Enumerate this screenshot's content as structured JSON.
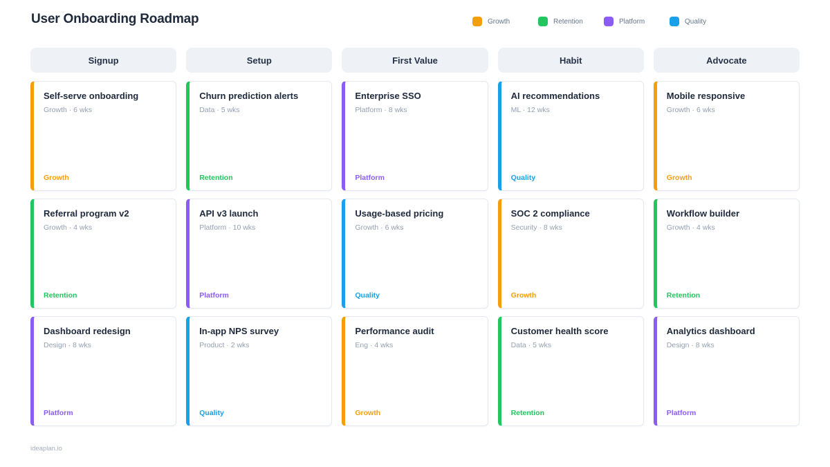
{
  "header": {
    "title": "User Onboarding Roadmap"
  },
  "legend": [
    {
      "label": "Growth"
    },
    {
      "label": "Retention"
    },
    {
      "label": "Platform"
    },
    {
      "label": "Quality"
    }
  ],
  "tag_colors": {
    "Growth": "#F59E0B",
    "Retention": "#22C55E",
    "Platform": "#8B5CF6",
    "Quality": "#18A0E8"
  },
  "columns": [
    {
      "header": "Signup",
      "cards": [
        {
          "title": "Self-serve onboarding",
          "meta": "Growth · 6 wks",
          "tag": "Growth"
        },
        {
          "title": "Referral program v2",
          "meta": "Growth · 4 wks",
          "tag": "Retention"
        },
        {
          "title": "Dashboard redesign",
          "meta": "Design · 8 wks",
          "tag": "Platform"
        }
      ]
    },
    {
      "header": "Setup",
      "cards": [
        {
          "title": "Churn prediction alerts",
          "meta": "Data · 5 wks",
          "tag": "Retention"
        },
        {
          "title": "API v3 launch",
          "meta": "Platform · 10 wks",
          "tag": "Platform"
        },
        {
          "title": "In-app NPS survey",
          "meta": "Product · 2 wks",
          "tag": "Quality"
        }
      ]
    },
    {
      "header": "First Value",
      "cards": [
        {
          "title": "Enterprise SSO",
          "meta": "Platform · 8 wks",
          "tag": "Platform"
        },
        {
          "title": "Usage-based pricing",
          "meta": "Growth · 6 wks",
          "tag": "Quality"
        },
        {
          "title": "Performance audit",
          "meta": "Eng · 4 wks",
          "tag": "Growth"
        }
      ]
    },
    {
      "header": "Habit",
      "cards": [
        {
          "title": "AI recommendations",
          "meta": "ML · 12 wks",
          "tag": "Quality"
        },
        {
          "title": "SOC 2 compliance",
          "meta": "Security · 8 wks",
          "tag": "Growth"
        },
        {
          "title": "Customer health score",
          "meta": "Data · 5 wks",
          "tag": "Retention"
        }
      ]
    },
    {
      "header": "Advocate",
      "cards": [
        {
          "title": "Mobile responsive",
          "meta": "Growth · 6 wks",
          "tag": "Growth"
        },
        {
          "title": "Workflow builder",
          "meta": "Growth · 4 wks",
          "tag": "Retention"
        },
        {
          "title": "Analytics dashboard",
          "meta": "Design · 8 wks",
          "tag": "Platform"
        }
      ]
    }
  ],
  "footer": {
    "brand": "ideaplan.io"
  }
}
